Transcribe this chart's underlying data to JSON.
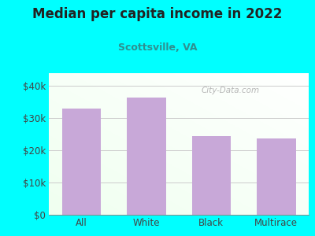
{
  "title": "Median per capita income in 2022",
  "subtitle": "Scottsville, VA",
  "categories": [
    "All",
    "White",
    "Black",
    "Multirace"
  ],
  "values": [
    33000,
    36500,
    24500,
    23800
  ],
  "bar_color": "#c8a8d8",
  "title_color": "#222222",
  "subtitle_color": "#2e9090",
  "background_color": "#00FFFF",
  "yticks": [
    0,
    10000,
    20000,
    30000,
    40000
  ],
  "ytick_labels": [
    "$0",
    "$10k",
    "$20k",
    "$30k",
    "$40k"
  ],
  "ylim": [
    0,
    44000
  ],
  "watermark": "City-Data.com",
  "grid_color": "#cccccc",
  "tick_color": "#444444"
}
